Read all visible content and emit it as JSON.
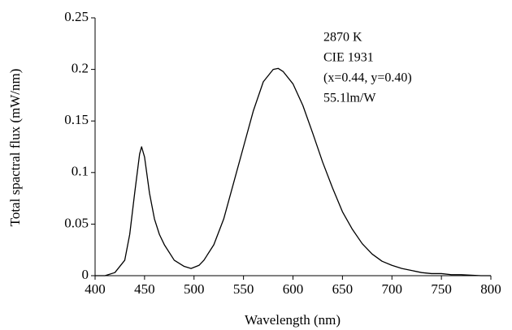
{
  "chart_data": {
    "type": "line",
    "xlabel": "Wavelength (nm)",
    "ylabel": "Total spactral flux (mW/nm)",
    "annotations": [
      "2870 K",
      "CIE 1931",
      "(x=0.44, y=0.40)",
      "55.1lm/W"
    ],
    "x": [
      400,
      410,
      420,
      430,
      435,
      440,
      445,
      447,
      450,
      455,
      460,
      465,
      470,
      480,
      490,
      497,
      505,
      510,
      520,
      530,
      540,
      550,
      560,
      570,
      580,
      585,
      590,
      600,
      610,
      620,
      630,
      640,
      650,
      660,
      670,
      680,
      690,
      700,
      710,
      720,
      730,
      740,
      750,
      760,
      770,
      780,
      790,
      800
    ],
    "series": [
      {
        "color": "#000000",
        "values": [
          0,
          0,
          0.003,
          0.015,
          0.04,
          0.08,
          0.118,
          0.125,
          0.115,
          0.08,
          0.055,
          0.04,
          0.03,
          0.015,
          0.009,
          0.007,
          0.01,
          0.015,
          0.03,
          0.055,
          0.09,
          0.125,
          0.16,
          0.188,
          0.2,
          0.201,
          0.198,
          0.186,
          0.165,
          0.138,
          0.11,
          0.085,
          0.062,
          0.045,
          0.031,
          0.021,
          0.014,
          0.01,
          0.007,
          0.005,
          0.003,
          0.002,
          0.002,
          0.001,
          0.001,
          0.0005,
          0,
          0
        ]
      }
    ],
    "xlim": [
      400,
      800
    ],
    "xticks": [
      400,
      450,
      500,
      550,
      600,
      650,
      700,
      750,
      800
    ],
    "ylim": [
      0,
      0.25
    ],
    "yticks": [
      0,
      0.05,
      0.1,
      0.15,
      0.2,
      0.25
    ],
    "grid": false
  }
}
